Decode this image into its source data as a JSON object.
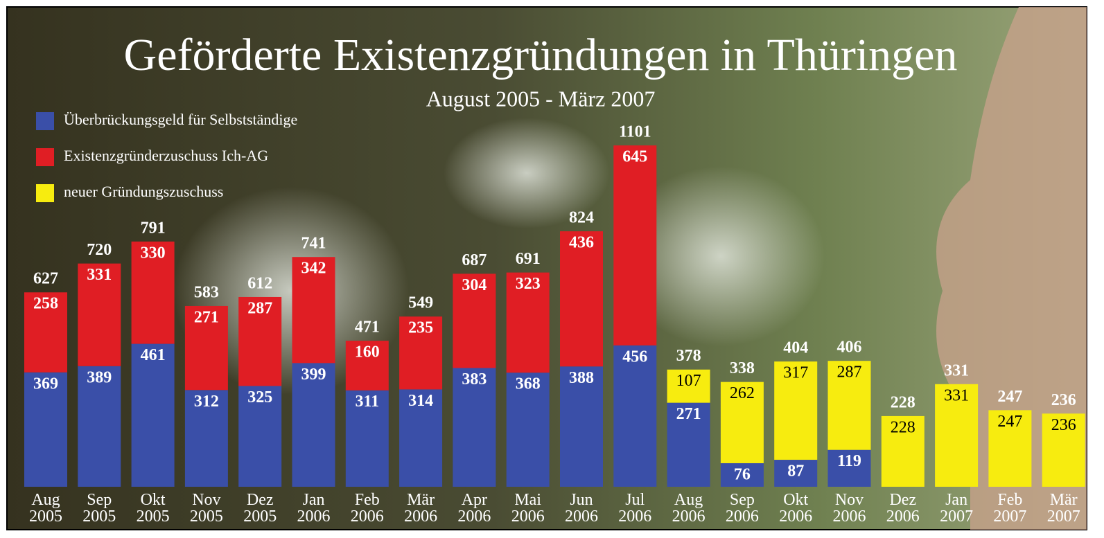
{
  "chart_data": {
    "type": "stacked-bar",
    "title": "Geförderte Existenzgründungen in Thüringen",
    "subtitle": "August 2005 - März 2007",
    "categories": [
      "Aug 2005",
      "Sep 2005",
      "Okt 2005",
      "Nov 2005",
      "Dez 2005",
      "Jan 2006",
      "Feb 2006",
      "Mär 2006",
      "Apr 2006",
      "Mai 2006",
      "Jun 2006",
      "Jul 2006",
      "Aug 2006",
      "Sep 2006",
      "Okt 2006",
      "Nov 2006",
      "Dez 2006",
      "Jan 2007",
      "Feb 2007",
      "Mär 2007"
    ],
    "series": [
      {
        "name": "Überbrückungsgeld für Selbstständige",
        "color": "#3a4fa8",
        "label_color": "#ffffff",
        "values": [
          369,
          389,
          461,
          312,
          325,
          399,
          311,
          314,
          383,
          368,
          388,
          456,
          271,
          76,
          87,
          119,
          null,
          null,
          null,
          null
        ]
      },
      {
        "name": "Existenzgründerzuschuss Ich-AG",
        "color": "#e01e24",
        "label_color": "#ffffff",
        "values": [
          258,
          331,
          330,
          271,
          287,
          342,
          160,
          235,
          304,
          323,
          436,
          645,
          null,
          null,
          null,
          null,
          null,
          null,
          null,
          null
        ]
      },
      {
        "name": "neuer Gründungszuschuss",
        "color": "#f7ec0f",
        "label_color": "#000000",
        "values": [
          null,
          null,
          null,
          null,
          null,
          null,
          null,
          null,
          null,
          null,
          null,
          null,
          107,
          262,
          317,
          287,
          228,
          331,
          247,
          236
        ]
      }
    ],
    "totals": [
      627,
      720,
      791,
      583,
      612,
      741,
      471,
      549,
      687,
      691,
      824,
      1101,
      378,
      338,
      404,
      406,
      228,
      331,
      247,
      236
    ]
  }
}
